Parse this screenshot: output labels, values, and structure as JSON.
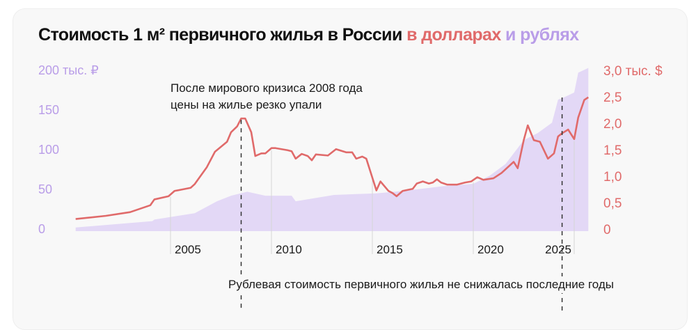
{
  "title": {
    "main": "Стоимость 1 м² первичного жилья в России",
    "usd_part": "в долларах",
    "rub_part": "и рублях"
  },
  "colors": {
    "usd": "#e06a6a",
    "rub_area": "#e3d8f6",
    "rub_text": "#b99de8",
    "grid": "#d6d6d6",
    "text": "#1a1a1a"
  },
  "chart_data": {
    "type": "line+area",
    "title": "Стоимость 1 м² первичного жилья в России в долларах и рублях",
    "x_ticks": [
      2005,
      2010,
      2015,
      2020,
      2025
    ],
    "x_tick_labels": [
      "2005",
      "2010",
      "2015",
      "2020",
      "2025"
    ],
    "xlim": [
      2000.3,
      2025.7
    ],
    "y_left": {
      "ticks": [
        0,
        50,
        100,
        150,
        200
      ],
      "tick_labels": [
        "0",
        "50",
        "100",
        "150",
        "200 тыс. ₽"
      ],
      "lim": [
        0,
        200
      ],
      "unit": "тыс. ₽"
    },
    "y_right": {
      "ticks": [
        0,
        0.5,
        1.0,
        1.5,
        2.0,
        2.5,
        3.0
      ],
      "tick_labels": [
        "0",
        "0,5",
        "1,0",
        "1,5",
        "2,0",
        "2,5",
        "3,0 тыс. $"
      ],
      "lim": [
        0,
        3.0
      ],
      "unit": "тыс. $"
    },
    "grid": false,
    "series": [
      {
        "kind": "area",
        "axis": "left",
        "x": [
          2000.3,
          2004.1,
          2004.2,
          2006.2,
          2007.3,
          2008.0,
          2008.8,
          2009.7,
          2011.0,
          2011.2,
          2013.1,
          2015.2,
          2016.1,
          2017.2,
          2018.5,
          2020.0,
          2020.8,
          2021.6,
          2022.5,
          2023.2,
          2023.9,
          2024.2,
          2024.5,
          2025.0,
          2025.2,
          2025.7
        ],
        "y": [
          2,
          10,
          12,
          20,
          35,
          42,
          47,
          42,
          42,
          35,
          43,
          45,
          47,
          50,
          54,
          57,
          67,
          82,
          112,
          121,
          134,
          163,
          166,
          172,
          197,
          203
        ]
      },
      {
        "kind": "line",
        "axis": "right",
        "x": [
          2000.3,
          2001.8,
          2003.0,
          2004.0,
          2004.2,
          2004.9,
          2005.2,
          2006.0,
          2006.2,
          2006.8,
          2007.2,
          2007.8,
          2008.0,
          2008.3,
          2008.5,
          2008.7,
          2009.0,
          2009.2,
          2009.5,
          2009.7,
          2010.0,
          2010.2,
          2010.8,
          2011.0,
          2011.2,
          2011.5,
          2011.8,
          2012.0,
          2012.2,
          2012.8,
          2013.2,
          2013.7,
          2014.0,
          2014.2,
          2014.5,
          2014.7,
          2015.2,
          2015.4,
          2015.8,
          2016.0,
          2016.2,
          2016.5,
          2017.0,
          2017.2,
          2017.5,
          2017.8,
          2018.0,
          2018.2,
          2018.4,
          2018.7,
          2019.2,
          2019.6,
          2019.9,
          2020.2,
          2020.5,
          2021.0,
          2021.4,
          2022.0,
          2022.2,
          2022.5,
          2022.7,
          2023.0,
          2023.3,
          2023.7,
          2024.0,
          2024.2,
          2024.4,
          2024.7,
          2025.0,
          2025.2,
          2025.5,
          2025.7
        ],
        "y": [
          0.19,
          0.25,
          0.32,
          0.45,
          0.56,
          0.62,
          0.72,
          0.78,
          0.85,
          1.17,
          1.46,
          1.65,
          1.83,
          1.94,
          2.09,
          2.09,
          1.83,
          1.38,
          1.43,
          1.43,
          1.53,
          1.53,
          1.49,
          1.47,
          1.33,
          1.42,
          1.38,
          1.3,
          1.41,
          1.39,
          1.51,
          1.45,
          1.45,
          1.33,
          1.37,
          1.33,
          0.73,
          0.9,
          0.72,
          0.68,
          0.62,
          0.72,
          0.76,
          0.86,
          0.9,
          0.86,
          0.88,
          0.94,
          0.88,
          0.84,
          0.84,
          0.88,
          0.9,
          0.98,
          0.93,
          0.96,
          1.06,
          1.27,
          1.15,
          1.68,
          1.96,
          1.68,
          1.65,
          1.33,
          1.43,
          1.75,
          1.81,
          1.88,
          1.7,
          2.11,
          2.44,
          2.49
        ]
      }
    ],
    "annotations": [
      {
        "x": 2008.5,
        "text": "После мирового кризиса 2008 года цены на жилье резко упали",
        "lines": [
          "После мирового кризиса 2008 года",
          "цены на жилье резко упали"
        ]
      },
      {
        "x": 2024.4,
        "text": "Рублевая стоимость первичного жилья не снижалась последние годы"
      }
    ]
  }
}
